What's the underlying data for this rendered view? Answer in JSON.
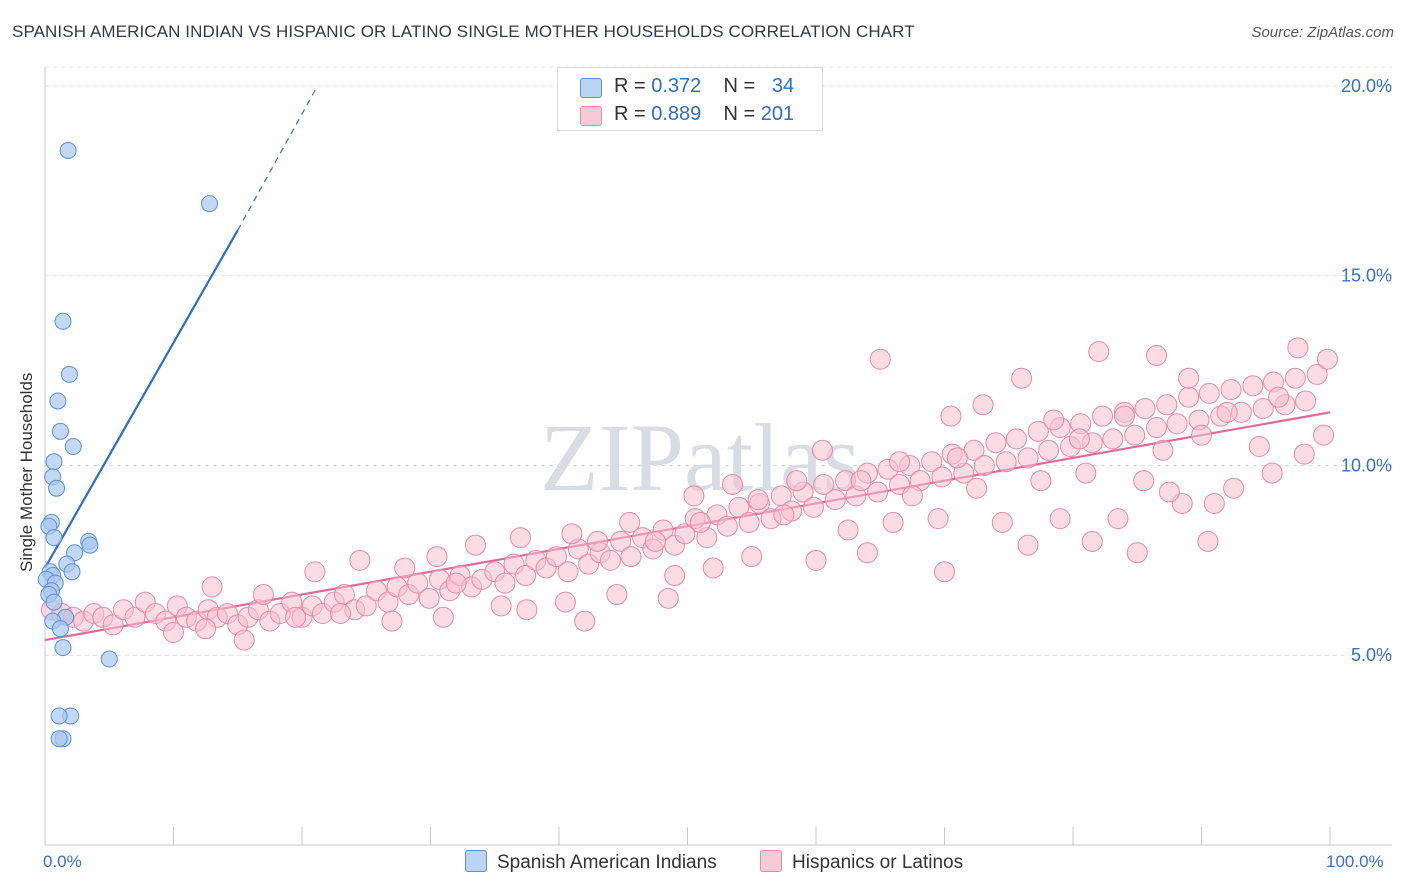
{
  "title": "SPANISH AMERICAN INDIAN VS HISPANIC OR LATINO SINGLE MOTHER HOUSEHOLDS CORRELATION CHART",
  "source": "Source: ZipAtlas.com",
  "watermark": "ZIPatlas",
  "legend": {
    "row1": {
      "r_label": "R =",
      "r_value": "0.372",
      "n_label": "N =",
      "n_value": "34"
    },
    "row2": {
      "r_label": "R =",
      "r_value": "0.889",
      "n_label": "N =",
      "n_value": "201"
    }
  },
  "bottom_legend": {
    "series1": "Spanish American Indians",
    "series2": "Hispanics or Latinos"
  },
  "colors": {
    "blue_fill": "#a9c8f0",
    "blue_stroke": "#5b8fd6",
    "blue_line": "#2d6ec7",
    "pink_fill": "#f7c0d0",
    "pink_stroke": "#e58aa8",
    "pink_line": "#e0699a",
    "tick_text": "#3a70c2"
  },
  "chart_data": {
    "type": "scatter",
    "title": "SPANISH AMERICAN INDIAN VS HISPANIC OR LATINO SINGLE MOTHER HOUSEHOLDS CORRELATION CHART",
    "xlabel": "",
    "ylabel": "Single Mother Households",
    "xlim": [
      0,
      100
    ],
    "ylim": [
      0,
      20.5
    ],
    "x_tick_labels": [
      "0.0%",
      "100.0%"
    ],
    "y_ticks": [
      5,
      10,
      15,
      20
    ],
    "y_tick_labels": [
      "5.0%",
      "10.0%",
      "15.0%",
      "20.0%"
    ],
    "series": [
      {
        "name": "Spanish American Indians",
        "R": 0.372,
        "N": 34,
        "trend": {
          "x0": 0,
          "y0": 7.3,
          "x1": 15,
          "y1": 16.2,
          "dashed_to_x": 21.2,
          "dashed_to_y": 20.0
        },
        "points": [
          [
            1.8,
            18.3
          ],
          [
            12.8,
            16.9
          ],
          [
            1.4,
            13.8
          ],
          [
            1.9,
            12.4
          ],
          [
            1.0,
            11.7
          ],
          [
            1.2,
            10.9
          ],
          [
            2.2,
            10.5
          ],
          [
            0.7,
            10.1
          ],
          [
            0.6,
            9.7
          ],
          [
            0.9,
            9.4
          ],
          [
            0.5,
            8.5
          ],
          [
            0.3,
            8.4
          ],
          [
            0.7,
            8.1
          ],
          [
            3.4,
            8.0
          ],
          [
            3.5,
            7.9
          ],
          [
            2.3,
            7.7
          ],
          [
            1.7,
            7.4
          ],
          [
            2.1,
            7.2
          ],
          [
            0.4,
            7.2
          ],
          [
            0.6,
            7.1
          ],
          [
            0.1,
            7.0
          ],
          [
            0.8,
            6.9
          ],
          [
            0.5,
            6.7
          ],
          [
            0.3,
            6.6
          ],
          [
            0.7,
            6.4
          ],
          [
            1.6,
            6.0
          ],
          [
            0.6,
            5.9
          ],
          [
            1.2,
            5.7
          ],
          [
            1.4,
            5.2
          ],
          [
            5.0,
            4.9
          ],
          [
            2.0,
            3.4
          ],
          [
            1.1,
            3.4
          ],
          [
            1.4,
            2.8
          ],
          [
            1.1,
            2.8
          ]
        ]
      },
      {
        "name": "Hispanics or Latinos",
        "R": 0.889,
        "N": 201,
        "trend": {
          "x0": 0,
          "y0": 5.4,
          "x1": 100,
          "y1": 11.4
        },
        "points": [
          [
            0.5,
            6.2
          ],
          [
            1.3,
            6.1
          ],
          [
            2.2,
            6.0
          ],
          [
            3.0,
            5.9
          ],
          [
            3.8,
            6.1
          ],
          [
            4.5,
            6.0
          ],
          [
            5.3,
            5.8
          ],
          [
            6.1,
            6.2
          ],
          [
            7.0,
            6.0
          ],
          [
            7.8,
            6.4
          ],
          [
            8.6,
            6.1
          ],
          [
            9.4,
            5.9
          ],
          [
            10.3,
            6.3
          ],
          [
            11.0,
            6.0
          ],
          [
            11.8,
            5.9
          ],
          [
            12.7,
            6.2
          ],
          [
            13.4,
            6.0
          ],
          [
            14.2,
            6.1
          ],
          [
            15.0,
            5.8
          ],
          [
            15.8,
            6.0
          ],
          [
            16.6,
            6.2
          ],
          [
            17.5,
            5.9
          ],
          [
            18.3,
            6.1
          ],
          [
            19.2,
            6.4
          ],
          [
            20.0,
            6.0
          ],
          [
            20.8,
            6.3
          ],
          [
            21.6,
            6.1
          ],
          [
            22.5,
            6.4
          ],
          [
            23.3,
            6.6
          ],
          [
            24.1,
            6.2
          ],
          [
            25.0,
            6.3
          ],
          [
            25.8,
            6.7
          ],
          [
            26.7,
            6.4
          ],
          [
            27.4,
            6.8
          ],
          [
            28.3,
            6.6
          ],
          [
            29.0,
            6.9
          ],
          [
            29.9,
            6.5
          ],
          [
            30.7,
            7.0
          ],
          [
            31.5,
            6.7
          ],
          [
            32.3,
            7.1
          ],
          [
            33.2,
            6.8
          ],
          [
            34.0,
            7.0
          ],
          [
            35.0,
            7.2
          ],
          [
            35.8,
            6.9
          ],
          [
            36.5,
            7.4
          ],
          [
            37.4,
            7.1
          ],
          [
            38.2,
            7.5
          ],
          [
            39.0,
            7.3
          ],
          [
            39.8,
            7.6
          ],
          [
            40.7,
            7.2
          ],
          [
            41.5,
            7.8
          ],
          [
            42.3,
            7.4
          ],
          [
            43.2,
            7.7
          ],
          [
            44.0,
            7.5
          ],
          [
            44.8,
            8.0
          ],
          [
            45.6,
            7.6
          ],
          [
            46.5,
            8.1
          ],
          [
            47.3,
            7.8
          ],
          [
            48.1,
            8.3
          ],
          [
            49.0,
            7.9
          ],
          [
            49.8,
            8.2
          ],
          [
            50.6,
            8.6
          ],
          [
            51.5,
            8.1
          ],
          [
            52.3,
            8.7
          ],
          [
            53.1,
            8.4
          ],
          [
            54.0,
            8.9
          ],
          [
            54.8,
            8.5
          ],
          [
            55.6,
            9.0
          ],
          [
            56.5,
            8.6
          ],
          [
            57.3,
            9.2
          ],
          [
            58.1,
            8.8
          ],
          [
            59.0,
            9.3
          ],
          [
            59.8,
            8.9
          ],
          [
            60.6,
            9.5
          ],
          [
            61.5,
            9.1
          ],
          [
            62.3,
            9.6
          ],
          [
            63.1,
            9.2
          ],
          [
            64.0,
            9.8
          ],
          [
            64.8,
            9.3
          ],
          [
            65.6,
            9.9
          ],
          [
            66.5,
            9.5
          ],
          [
            67.3,
            10.0
          ],
          [
            68.1,
            9.6
          ],
          [
            69.0,
            10.1
          ],
          [
            69.8,
            9.7
          ],
          [
            70.6,
            10.3
          ],
          [
            71.5,
            9.8
          ],
          [
            72.3,
            10.4
          ],
          [
            73.1,
            10.0
          ],
          [
            74.0,
            10.6
          ],
          [
            74.8,
            10.1
          ],
          [
            75.6,
            10.7
          ],
          [
            76.5,
            10.2
          ],
          [
            77.3,
            10.9
          ],
          [
            78.1,
            10.4
          ],
          [
            79.0,
            11.0
          ],
          [
            79.8,
            10.5
          ],
          [
            80.6,
            11.1
          ],
          [
            81.5,
            10.6
          ],
          [
            82.3,
            11.3
          ],
          [
            83.1,
            10.7
          ],
          [
            84.0,
            11.4
          ],
          [
            84.8,
            10.8
          ],
          [
            85.6,
            11.5
          ],
          [
            86.5,
            11.0
          ],
          [
            87.3,
            11.6
          ],
          [
            88.1,
            11.1
          ],
          [
            89.0,
            11.8
          ],
          [
            89.8,
            11.2
          ],
          [
            90.6,
            11.9
          ],
          [
            91.5,
            11.3
          ],
          [
            92.3,
            12.0
          ],
          [
            93.1,
            11.4
          ],
          [
            94.0,
            12.1
          ],
          [
            94.8,
            11.5
          ],
          [
            95.6,
            12.2
          ],
          [
            96.5,
            11.6
          ],
          [
            97.3,
            12.3
          ],
          [
            98.1,
            11.7
          ],
          [
            99.0,
            12.4
          ],
          [
            99.5,
            10.8
          ],
          [
            65.0,
            12.8
          ],
          [
            82.0,
            13.0
          ],
          [
            86.5,
            12.9
          ],
          [
            97.5,
            13.1
          ],
          [
            99.8,
            12.8
          ],
          [
            89.0,
            12.3
          ],
          [
            76.0,
            12.3
          ],
          [
            70.5,
            11.3
          ],
          [
            73.0,
            11.6
          ],
          [
            78.5,
            11.2
          ],
          [
            84.0,
            11.3
          ],
          [
            92.0,
            11.4
          ],
          [
            96.0,
            11.8
          ],
          [
            60.5,
            10.4
          ],
          [
            66.5,
            10.1
          ],
          [
            71.0,
            10.2
          ],
          [
            80.5,
            10.7
          ],
          [
            87.0,
            10.4
          ],
          [
            90.0,
            10.8
          ],
          [
            94.5,
            10.5
          ],
          [
            98.0,
            10.3
          ],
          [
            55.5,
            9.1
          ],
          [
            58.5,
            9.6
          ],
          [
            63.5,
            9.6
          ],
          [
            67.5,
            9.2
          ],
          [
            72.5,
            9.4
          ],
          [
            77.5,
            9.6
          ],
          [
            81.0,
            9.8
          ],
          [
            85.5,
            9.6
          ],
          [
            88.5,
            9.0
          ],
          [
            92.5,
            9.4
          ],
          [
            95.5,
            9.8
          ],
          [
            45.5,
            8.5
          ],
          [
            50.5,
            9.2
          ],
          [
            53.5,
            9.5
          ],
          [
            57.5,
            8.7
          ],
          [
            62.5,
            8.3
          ],
          [
            66.0,
            8.5
          ],
          [
            69.5,
            8.6
          ],
          [
            74.5,
            8.5
          ],
          [
            79.0,
            8.6
          ],
          [
            83.5,
            8.6
          ],
          [
            87.5,
            9.3
          ],
          [
            91.0,
            9.0
          ],
          [
            32.0,
            6.9
          ],
          [
            35.5,
            6.3
          ],
          [
            40.5,
            6.4
          ],
          [
            44.5,
            6.6
          ],
          [
            49.0,
            7.1
          ],
          [
            52.0,
            7.3
          ],
          [
            55.0,
            7.6
          ],
          [
            60.0,
            7.5
          ],
          [
            64.0,
            7.7
          ],
          [
            70.0,
            7.2
          ],
          [
            76.5,
            7.9
          ],
          [
            81.5,
            8.0
          ],
          [
            85.0,
            7.7
          ],
          [
            90.5,
            8.0
          ],
          [
            13.0,
            6.8
          ],
          [
            17.0,
            6.6
          ],
          [
            21.0,
            7.2
          ],
          [
            24.5,
            7.5
          ],
          [
            28.0,
            7.3
          ],
          [
            30.5,
            7.6
          ],
          [
            33.5,
            7.9
          ],
          [
            37.0,
            8.1
          ],
          [
            41.0,
            8.2
          ],
          [
            43.0,
            8.0
          ],
          [
            47.5,
            8.0
          ],
          [
            51.0,
            8.5
          ],
          [
            10.0,
            5.6
          ],
          [
            15.5,
            5.4
          ],
          [
            19.5,
            6.0
          ],
          [
            23.0,
            6.1
          ],
          [
            27.0,
            5.9
          ],
          [
            31.0,
            6.0
          ],
          [
            37.5,
            6.2
          ],
          [
            42.0,
            5.9
          ],
          [
            48.5,
            6.5
          ],
          [
            12.5,
            5.7
          ]
        ]
      }
    ]
  }
}
